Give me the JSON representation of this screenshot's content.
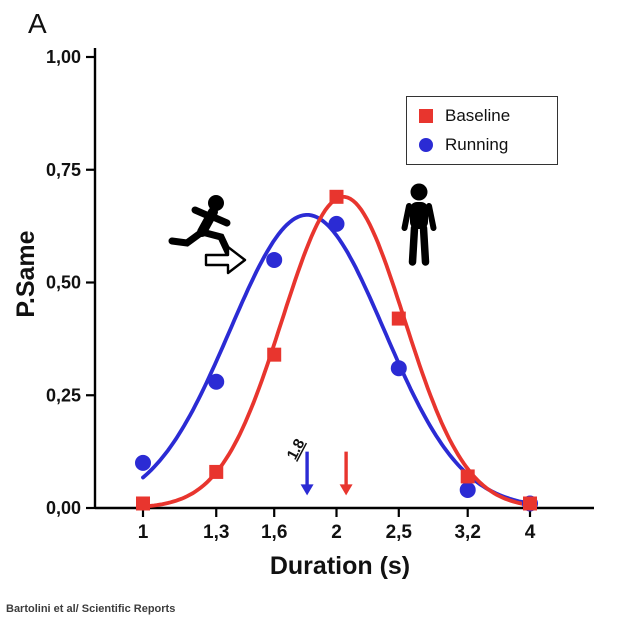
{
  "panel_label": "A",
  "watermark": "Bartolini et al/ Scientific Reports",
  "legend": {
    "items": [
      {
        "label": "Baseline",
        "color": "#e8352e",
        "marker": "square"
      },
      {
        "label": "Running",
        "color": "#2b2bd4",
        "marker": "circle"
      }
    ]
  },
  "icons": {
    "runner": "running-person-pictogram",
    "open_arrow": "rightwards-white-arrow",
    "person": "standing-person-pictogram"
  },
  "chart_data": {
    "type": "scatter",
    "title": "",
    "xlabel": "Duration (s)",
    "ylabel": "P.Same",
    "x_scale": "log",
    "xlim": [
      1,
      4
    ],
    "ylim": [
      0,
      1
    ],
    "grid": false,
    "legend_position": "top-right",
    "x_ticks": [
      1,
      1.3,
      1.6,
      2,
      2.5,
      3.2,
      4
    ],
    "x_tick_labels": [
      "1",
      "1,3",
      "1,6",
      "2",
      "2,5",
      "3,2",
      "4"
    ],
    "y_ticks": [
      0,
      0.25,
      0.5,
      0.75,
      1
    ],
    "y_tick_labels": [
      "0,00",
      "0,25",
      "0,50",
      "0,75",
      "1,00"
    ],
    "x": [
      1,
      1.3,
      1.6,
      2,
      2.5,
      3.2,
      4
    ],
    "series": [
      {
        "name": "Running",
        "color": "#2b2bd4",
        "marker": "circle",
        "values": [
          0.1,
          0.28,
          0.55,
          0.63,
          0.31,
          0.04,
          0.01
        ],
        "fit": {
          "type": "gaussian_log10",
          "peak_x": 1.8,
          "peak_y": 0.65,
          "sigma_log10": 0.12
        }
      },
      {
        "name": "Baseline",
        "color": "#e8352e",
        "marker": "square",
        "values": [
          0.01,
          0.08,
          0.34,
          0.69,
          0.42,
          0.07,
          0.01
        ],
        "fit": {
          "type": "gaussian_log10",
          "peak_x": 2.05,
          "peak_y": 0.69,
          "sigma_log10": 0.095
        }
      }
    ],
    "annotations": {
      "running_peak_arrow": {
        "x": 1.8,
        "label": "1.8",
        "color": "#2b2bd4"
      },
      "baseline_peak_arrow": {
        "x": 2.07,
        "label": "",
        "color": "#e8352e"
      }
    }
  }
}
